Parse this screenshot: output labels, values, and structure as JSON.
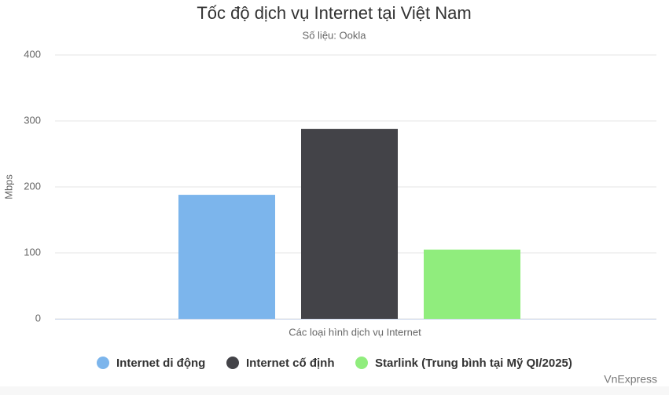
{
  "chart_data": {
    "type": "bar",
    "title": "Tốc độ dịch vụ Internet tại Việt Nam",
    "subtitle": "Số liệu: Ookla",
    "y_label": "Mbps",
    "credits": "VnExpress",
    "categories": [
      "Các loại hình dịch vụ Internet"
    ],
    "series": [
      {
        "name": "Internet di động",
        "color": "#7cb5ec",
        "values": [
          188
        ]
      },
      {
        "name": "Internet cố định",
        "color": "#434348",
        "values": [
          288
        ]
      },
      {
        "name": "Starlink (Trung bình tại Mỹ QI/2025)",
        "color": "#90ed7d",
        "values": [
          105
        ]
      }
    ],
    "ylim": [
      0,
      400
    ],
    "yticks": [
      0,
      100,
      200,
      300,
      400
    ],
    "grid": true
  }
}
